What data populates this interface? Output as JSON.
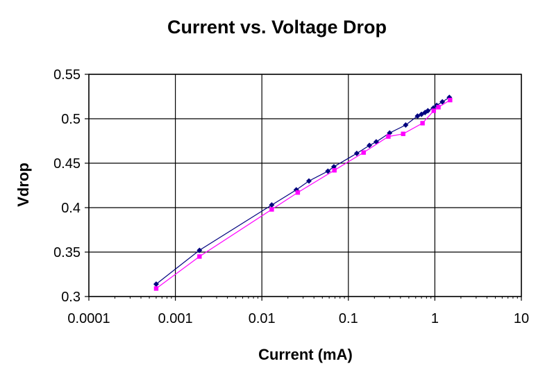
{
  "chart_data": {
    "type": "scatter",
    "title": "Current vs. Voltage Drop",
    "xlabel": "Current (mA)",
    "ylabel": "Vdrop",
    "x_scale": "log",
    "xlim": [
      0.0001,
      10
    ],
    "ylim": [
      0.3,
      0.55
    ],
    "x_ticks": [
      0.0001,
      0.001,
      0.01,
      0.1,
      1,
      10
    ],
    "x_tick_labels": [
      "0.0001",
      "0.001",
      "0.01",
      "0.1",
      "1",
      "10"
    ],
    "y_ticks": [
      0.3,
      0.35,
      0.4,
      0.45,
      0.5,
      0.55
    ],
    "y_tick_labels": [
      "0.3",
      "0.35",
      "0.4",
      "0.45",
      "0.5",
      "0.55"
    ],
    "grid": true,
    "legend": false,
    "series": [
      {
        "color": "#00007f",
        "marker": "diamond",
        "x": [
          0.0006,
          0.0019,
          0.013,
          0.025,
          0.035,
          0.058,
          0.068,
          0.125,
          0.175,
          0.21,
          0.3,
          0.46,
          0.63,
          0.7,
          0.77,
          0.83,
          0.96,
          1.05,
          1.22,
          1.47
        ],
        "y": [
          0.314,
          0.352,
          0.403,
          0.42,
          0.43,
          0.441,
          0.446,
          0.461,
          0.47,
          0.474,
          0.484,
          0.493,
          0.503,
          0.505,
          0.507,
          0.509,
          0.512,
          0.515,
          0.519,
          0.524
        ]
      },
      {
        "color": "#ff00ff",
        "marker": "square",
        "x": [
          0.0006,
          0.0019,
          0.013,
          0.026,
          0.069,
          0.15,
          0.29,
          0.43,
          0.72,
          0.97,
          1.1,
          1.5
        ],
        "y": [
          0.309,
          0.345,
          0.398,
          0.417,
          0.442,
          0.462,
          0.48,
          0.483,
          0.495,
          0.509,
          0.513,
          0.521
        ]
      }
    ]
  }
}
